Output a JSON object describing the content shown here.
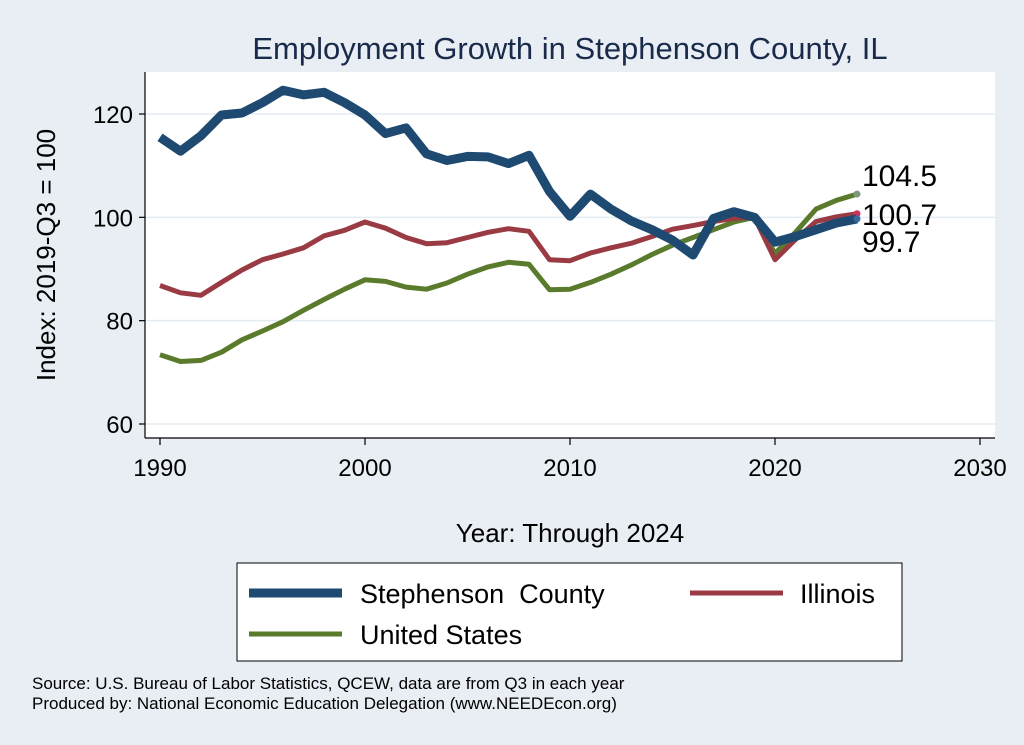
{
  "chart_data": {
    "type": "line",
    "title": "Employment Growth in Stephenson County, IL",
    "xlabel": "Year: Through 2024",
    "ylabel": "Index: 2019-Q3 = 100",
    "xlim": [
      1990,
      2030
    ],
    "ylim": [
      60,
      125
    ],
    "xticks": [
      "1990",
      "2000",
      "2010",
      "2020",
      "2030"
    ],
    "yticks": [
      "60",
      "80",
      "100",
      "120"
    ],
    "grid": true,
    "legend_position": "bottom",
    "x": [
      1990,
      1991,
      1992,
      1993,
      1994,
      1995,
      1996,
      1997,
      1998,
      1999,
      2000,
      2001,
      2002,
      2003,
      2004,
      2005,
      2006,
      2007,
      2008,
      2009,
      2010,
      2011,
      2012,
      2013,
      2014,
      2015,
      2016,
      2017,
      2018,
      2019,
      2020,
      2021,
      2022,
      2023,
      2024
    ],
    "series": [
      {
        "name": "Stephenson  County",
        "color": "#1e4a72",
        "values": [
          115.5,
          112.8,
          115.8,
          119.8,
          120.2,
          122.2,
          124.6,
          123.7,
          124.2,
          122.2,
          119.8,
          116.2,
          117.3,
          112.3,
          111.0,
          111.8,
          111.7,
          110.4,
          112.0,
          105.0,
          100.2,
          104.5,
          101.6,
          99.3,
          97.6,
          95.6,
          92.7,
          99.8,
          101.1,
          100.0,
          95.2,
          96.3,
          97.6,
          98.9,
          99.7
        ]
      },
      {
        "name": "Illinois",
        "color": "#9a3b44",
        "values": [
          86.8,
          85.4,
          84.9,
          87.4,
          89.8,
          91.8,
          92.9,
          94.1,
          96.4,
          97.5,
          99.1,
          97.9,
          96.1,
          94.9,
          95.1,
          96.1,
          97.1,
          97.8,
          97.3,
          91.8,
          91.6,
          93.1,
          94.1,
          95.0,
          96.3,
          97.7,
          98.4,
          99.2,
          99.8,
          100.0,
          91.8,
          95.7,
          99.2,
          100.1,
          100.7
        ]
      },
      {
        "name": "United States",
        "color": "#5a7a2c",
        "values": [
          73.4,
          72.1,
          72.3,
          73.9,
          76.3,
          78.0,
          79.8,
          82.0,
          84.1,
          86.1,
          87.9,
          87.6,
          86.5,
          86.1,
          87.3,
          89.0,
          90.4,
          91.3,
          90.9,
          86.0,
          86.1,
          87.4,
          89.0,
          90.8,
          92.8,
          94.6,
          96.1,
          97.6,
          99.1,
          100.0,
          93.0,
          97.1,
          101.6,
          103.3,
          104.5
        ]
      }
    ],
    "end_labels": [
      "104.5",
      "100.7",
      "99.7"
    ],
    "source": "Source: U.S. Bureau of Labor Statistics, QCEW, data are from Q3 in each year",
    "produced_by": "Produced by: National Economic Education Delegation (www.NEEDEcon.org)"
  }
}
